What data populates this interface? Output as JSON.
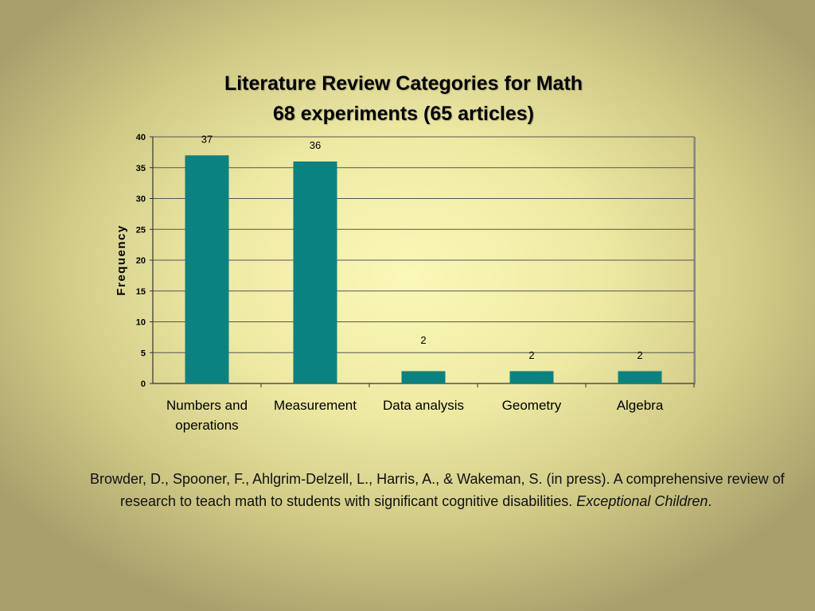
{
  "chart_data": {
    "type": "bar",
    "title": "Literature Review Categories for Math",
    "subtitle": "68 experiments (65 articles)",
    "ylabel": "Frequency",
    "xlabel": "",
    "categories": [
      "Numbers and operations",
      "Measurement",
      "Data analysis",
      "Geometry",
      "Algebra"
    ],
    "category_lines": [
      [
        "Numbers and",
        "operations"
      ],
      [
        "Measurement"
      ],
      [
        "Data analysis"
      ],
      [
        "Geometry"
      ],
      [
        "Algebra"
      ]
    ],
    "values": [
      37,
      36,
      2,
      2,
      2
    ],
    "data_labels": [
      "37",
      "36",
      "2",
      "2",
      "2"
    ],
    "ylim": [
      0,
      40
    ],
    "yticks": [
      0,
      5,
      10,
      15,
      20,
      25,
      30,
      35,
      40
    ],
    "grid": true,
    "legend": "none",
    "bar_color": "#0b8282",
    "gridline_color": "#555555",
    "plot_background": "transparent"
  },
  "citation": {
    "text": "Browder, D., Spooner, F., Ahlgrim-Delzell, L., Harris, A., & Wakeman, S.  (in press).  A comprehensive review of research to teach math to students with significant cognitive disabilities. ",
    "journal": "Exceptional Children",
    "end": "."
  }
}
